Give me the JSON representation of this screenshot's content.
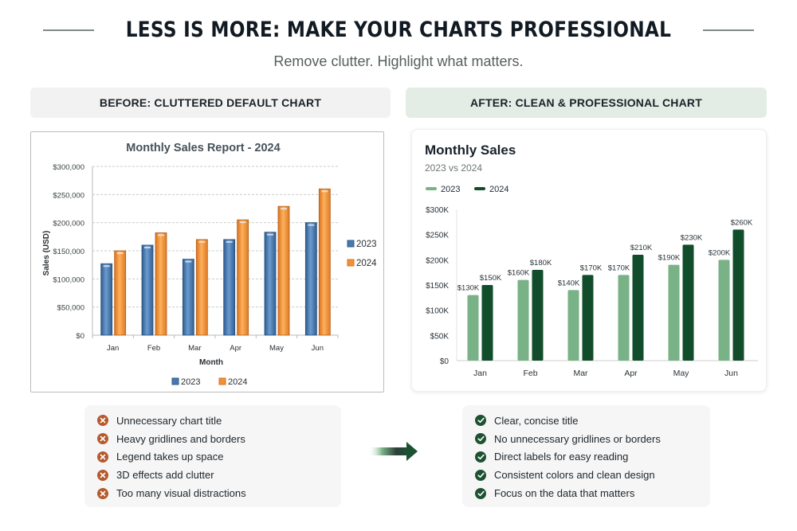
{
  "header": {
    "title": "LESS IS MORE: MAKE YOUR CHARTS PROFESSIONAL",
    "subtitle": "Remove clutter. Highlight what matters."
  },
  "panels": {
    "before_label": "BEFORE: CLUTTERED DEFAULT CHART",
    "after_label": "AFTER: CLEAN & PROFESSIONAL CHART"
  },
  "before_chart": {
    "title": "Monthly Sales Report - 2024",
    "ylabel": "Sales (USD)",
    "xlabel": "Month",
    "yticks": [
      "$0",
      "$50,000",
      "$100,000",
      "$150,000",
      "$200,000",
      "$250,000",
      "$300,000"
    ],
    "legend": [
      "2023",
      "2024"
    ]
  },
  "after_chart": {
    "title": "Monthly Sales",
    "subtitle": "2023 vs 2024",
    "yticks": [
      "$0",
      "$50K",
      "$100K",
      "$150K",
      "$200K",
      "$250K",
      "$300K"
    ],
    "legend": [
      "2023",
      "2024"
    ],
    "labels_2023": [
      "$130K",
      "$160K",
      "$140K",
      "$170K",
      "$190K",
      "$200K"
    ],
    "labels_2024": [
      "$150K",
      "$180K",
      "$170K",
      "$210K",
      "$230K",
      "$260K"
    ]
  },
  "colors": {
    "before_2023": "#4a78ad",
    "before_2024": "#f0913a",
    "after_2023": "#79b286",
    "after_2024": "#124d2b",
    "bad_icon": "#b65a2c",
    "good_icon": "#1c5232"
  },
  "icons": {
    "bad": "x-circle-icon",
    "good": "check-circle-icon",
    "transition": "arrow-right-icon"
  },
  "before_list": [
    "Unnecessary chart title",
    "Heavy gridlines and borders",
    "Legend takes up space",
    "3D effects add clutter",
    "Too many visual distractions"
  ],
  "after_list": [
    "Clear, concise title",
    "No unnecessary gridlines or borders",
    "Direct labels for easy reading",
    "Consistent colors and clean design",
    "Focus on the data that matters"
  ],
  "chart_data": [
    {
      "type": "bar",
      "title": "Monthly Sales Report - 2024",
      "xlabel": "Month",
      "ylabel": "Sales (USD)",
      "categories": [
        "Jan",
        "Feb",
        "Mar",
        "Apr",
        "May",
        "Jun"
      ],
      "series": [
        {
          "name": "2023",
          "values": [
            127000,
            160000,
            135000,
            170000,
            183000,
            200000
          ]
        },
        {
          "name": "2024",
          "values": [
            150000,
            182000,
            170000,
            205000,
            229000,
            260000
          ]
        }
      ],
      "ylim": [
        0,
        300000
      ],
      "grid": true,
      "legend_position": "right and bottom"
    },
    {
      "type": "bar",
      "title": "Monthly Sales",
      "subtitle": "2023 vs 2024",
      "xlabel": "",
      "ylabel": "",
      "categories": [
        "Jan",
        "Feb",
        "Mar",
        "Apr",
        "May",
        "Jun"
      ],
      "series": [
        {
          "name": "2023",
          "values": [
            130000,
            160000,
            140000,
            170000,
            190000,
            200000
          ]
        },
        {
          "name": "2024",
          "values": [
            150000,
            180000,
            170000,
            210000,
            230000,
            260000
          ]
        }
      ],
      "data_labels": true,
      "ylim": [
        0,
        300000
      ],
      "grid": false,
      "legend_position": "top-left"
    }
  ]
}
